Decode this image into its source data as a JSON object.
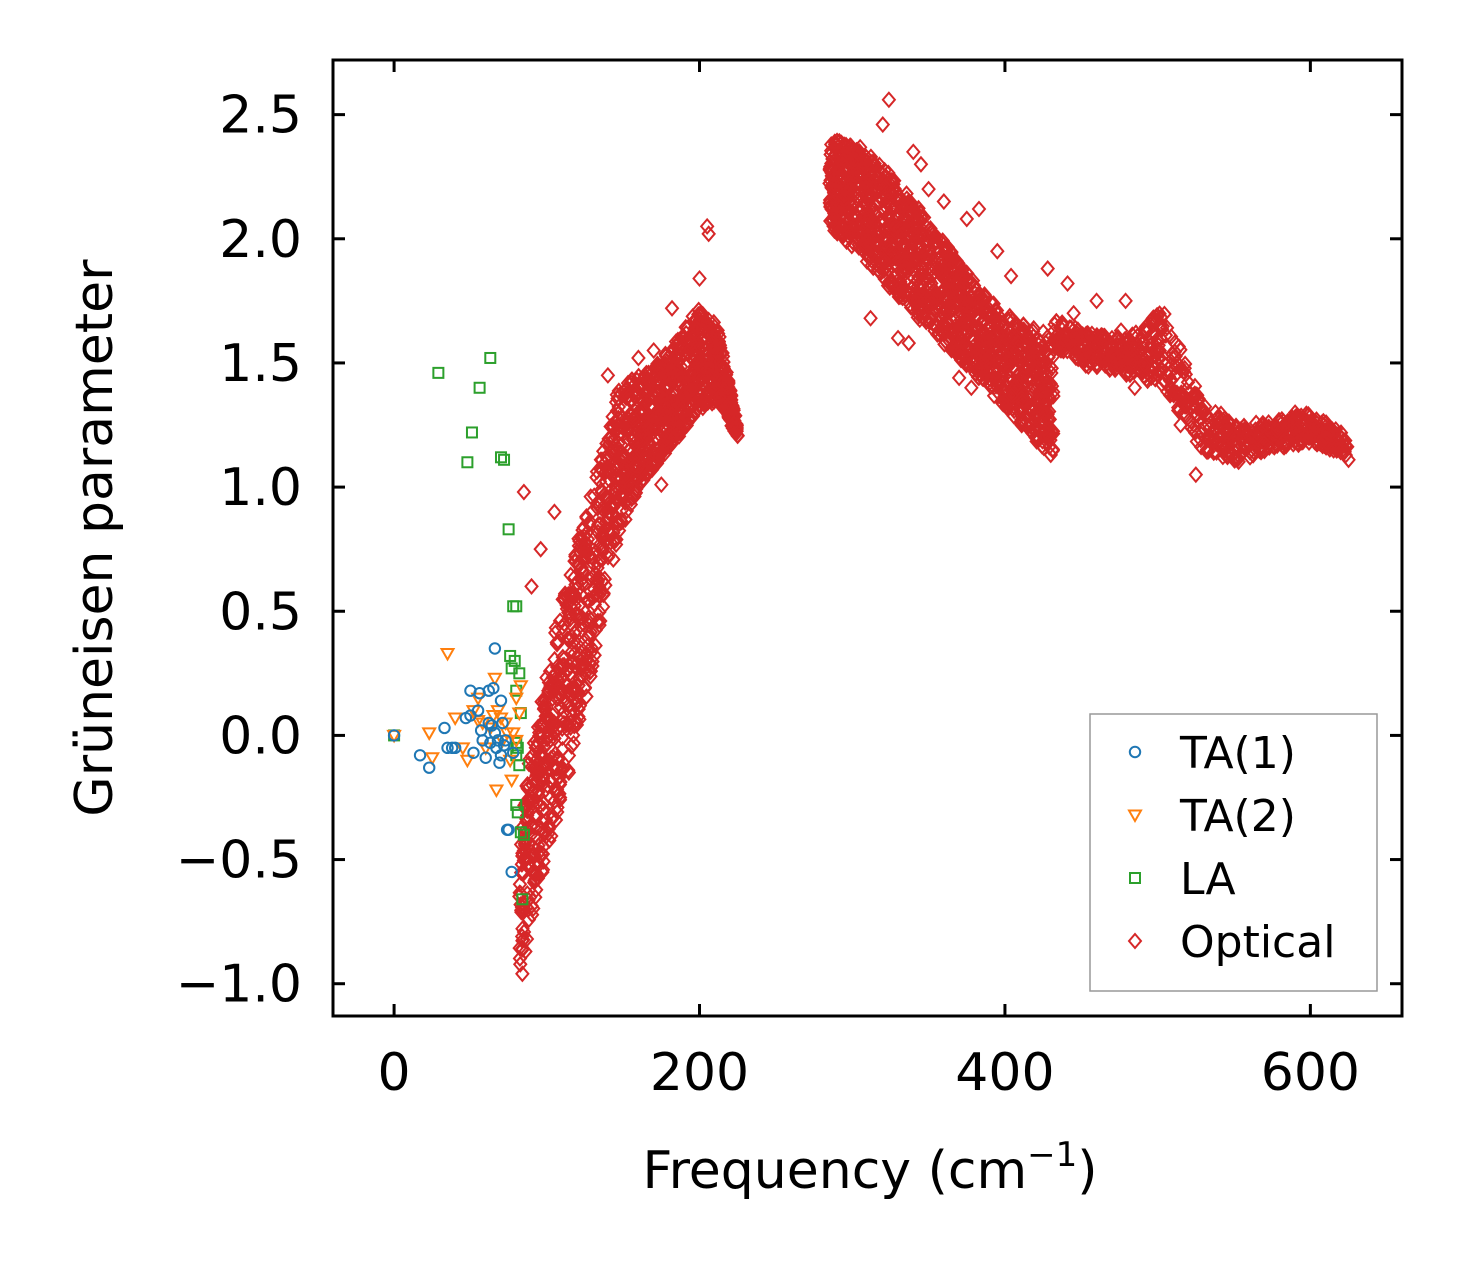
{
  "chart_data": {
    "type": "scatter",
    "title": "",
    "xlabel": "Frequency (cm",
    "xlabel_superscript": "−1",
    "xlabel_suffix": ")",
    "ylabel": "Grüneisen parameter",
    "xlim": [
      -40,
      660
    ],
    "ylim": [
      -1.13,
      2.72
    ],
    "x_ticks": [
      0,
      200,
      400,
      600
    ],
    "x_tick_labels": [
      "0",
      "200",
      "400",
      "600"
    ],
    "y_ticks": [
      -1.0,
      -0.5,
      0.0,
      0.5,
      1.0,
      1.5,
      2.0,
      2.5
    ],
    "y_tick_labels": [
      "−1.0",
      "−0.5",
      "0.0",
      "0.5",
      "1.0",
      "1.5",
      "2.0",
      "2.5"
    ],
    "grid": false,
    "legend_position": "lower-right",
    "series": [
      {
        "name": "TA(1)",
        "marker": "circle",
        "color": "#1f77b4",
        "points": [
          [
            0,
            0.0
          ],
          [
            17,
            -0.08
          ],
          [
            23,
            -0.13
          ],
          [
            33,
            0.03
          ],
          [
            35,
            -0.05
          ],
          [
            38,
            -0.05
          ],
          [
            40,
            -0.05
          ],
          [
            47,
            0.07
          ],
          [
            50,
            0.08
          ],
          [
            50,
            0.18
          ],
          [
            52,
            -0.07
          ],
          [
            55,
            0.1
          ],
          [
            56,
            0.17
          ],
          [
            57,
            0.02
          ],
          [
            58,
            -0.02
          ],
          [
            60,
            -0.09
          ],
          [
            62,
            0.18
          ],
          [
            62,
            0.05
          ],
          [
            63,
            -0.03
          ],
          [
            64,
            0.04
          ],
          [
            65,
            0.19
          ],
          [
            66,
            0.35
          ],
          [
            66,
            0.01
          ],
          [
            67,
            -0.05
          ],
          [
            68,
            -0.02
          ],
          [
            69,
            -0.11
          ],
          [
            70,
            0.14
          ],
          [
            70,
            -0.08
          ],
          [
            71,
            0.05
          ],
          [
            72,
            -0.04
          ],
          [
            73,
            -0.02
          ],
          [
            74,
            -0.38
          ],
          [
            75,
            -0.38
          ],
          [
            77,
            -0.55
          ],
          [
            78,
            -0.07
          ]
        ]
      },
      {
        "name": "TA(2)",
        "marker": "triangle-down",
        "color": "#ff7f0e",
        "points": [
          [
            0,
            0.0
          ],
          [
            23,
            0.01
          ],
          [
            25,
            -0.09
          ],
          [
            35,
            0.33
          ],
          [
            40,
            0.07
          ],
          [
            45,
            -0.05
          ],
          [
            48,
            -0.1
          ],
          [
            52,
            0.1
          ],
          [
            55,
            0.06
          ],
          [
            55,
            0.15
          ],
          [
            58,
            0.05
          ],
          [
            60,
            -0.05
          ],
          [
            63,
            0.03
          ],
          [
            65,
            0.08
          ],
          [
            66,
            0.23
          ],
          [
            67,
            -0.22
          ],
          [
            68,
            0.1
          ],
          [
            70,
            0.07
          ],
          [
            71,
            -0.02
          ],
          [
            73,
            0.05
          ],
          [
            74,
            0.01
          ],
          [
            76,
            -0.1
          ],
          [
            77,
            -0.18
          ],
          [
            78,
            0.01
          ],
          [
            80,
            0.15
          ],
          [
            80,
            -0.02
          ],
          [
            82,
            0.09
          ],
          [
            83,
            0.2
          ]
        ]
      },
      {
        "name": "LA",
        "marker": "square",
        "color": "#2ca02c",
        "points": [
          [
            0,
            0.0
          ],
          [
            29,
            1.46
          ],
          [
            48,
            1.1
          ],
          [
            51,
            1.22
          ],
          [
            56,
            1.4
          ],
          [
            63,
            1.52
          ],
          [
            70,
            1.12
          ],
          [
            72,
            1.11
          ],
          [
            75,
            0.83
          ],
          [
            76,
            0.32
          ],
          [
            77,
            0.27
          ],
          [
            78,
            0.52
          ],
          [
            79,
            0.3
          ],
          [
            80,
            0.52
          ],
          [
            80,
            0.18
          ],
          [
            80,
            -0.03
          ],
          [
            80,
            -0.08
          ],
          [
            80,
            -0.28
          ],
          [
            81,
            -0.05
          ],
          [
            81,
            -0.31
          ],
          [
            82,
            0.25
          ],
          [
            82,
            -0.12
          ],
          [
            83,
            0.09
          ],
          [
            83,
            -0.39
          ],
          [
            84,
            -0.66
          ],
          [
            85,
            -0.4
          ]
        ]
      },
      {
        "name": "Optical",
        "marker": "diamond",
        "color": "#d62728",
        "dense_bands": [
          {
            "label": "optical-band-1",
            "x_range": [
              82,
              225
            ],
            "y_lower": [
              -0.95,
              -0.6,
              -0.3,
              0.0,
              0.4,
              0.8,
              1.0,
              1.1,
              1.2,
              1.3,
              1.35,
              1.2
            ],
            "y_upper": [
              -0.3,
              0.1,
              0.5,
              0.8,
              1.1,
              1.4,
              1.45,
              1.5,
              1.6,
              1.72,
              1.65,
              1.24
            ],
            "count": 1400
          },
          {
            "label": "optical-band-2",
            "x_range": [
              285,
              432
            ],
            "y_lower": [
              2.05,
              1.95,
              1.82,
              1.7,
              1.58,
              1.48,
              1.35,
              1.22,
              1.12
            ],
            "y_upper": [
              2.4,
              2.38,
              2.28,
              2.15,
              2.0,
              1.85,
              1.72,
              1.65,
              1.62
            ],
            "count": 1400
          },
          {
            "label": "optical-band-3",
            "x_range": [
              432,
              625
            ],
            "y_lower": [
              1.55,
              1.48,
              1.45,
              1.4,
              1.15,
              1.1,
              1.15,
              1.18,
              1.12
            ],
            "y_upper": [
              1.68,
              1.62,
              1.6,
              1.72,
              1.35,
              1.25,
              1.27,
              1.3,
              1.2
            ],
            "count": 700
          }
        ],
        "points": [
          [
            85,
            0.98
          ],
          [
            90,
            0.6
          ],
          [
            96,
            0.75
          ],
          [
            105,
            0.9
          ],
          [
            150,
            0.95
          ],
          [
            155,
            0.93
          ],
          [
            175,
            1.01
          ],
          [
            205,
            2.05
          ],
          [
            206,
            2.02
          ],
          [
            200,
            1.84
          ],
          [
            190,
            1.6
          ],
          [
            170,
            1.55
          ],
          [
            160,
            1.52
          ],
          [
            140,
            1.45
          ],
          [
            182,
            1.72
          ],
          [
            324,
            2.56
          ],
          [
            320,
            2.46
          ],
          [
            340,
            2.35
          ],
          [
            345,
            2.3
          ],
          [
            350,
            2.2
          ],
          [
            360,
            2.15
          ],
          [
            375,
            2.08
          ],
          [
            383,
            2.12
          ],
          [
            395,
            1.95
          ],
          [
            404,
            1.85
          ],
          [
            428,
            1.88
          ],
          [
            441,
            1.82
          ],
          [
            460,
            1.75
          ],
          [
            479,
            1.75
          ],
          [
            445,
            1.7
          ],
          [
            476,
            1.63
          ],
          [
            500,
            1.55
          ],
          [
            330,
            1.6
          ],
          [
            337,
            1.58
          ],
          [
            312,
            1.68
          ],
          [
            370,
            1.44
          ],
          [
            378,
            1.4
          ],
          [
            410,
            1.3
          ],
          [
            420,
            1.2
          ],
          [
            430,
            1.13
          ],
          [
            445,
            1.6
          ],
          [
            470,
            1.5
          ],
          [
            485,
            1.4
          ],
          [
            500,
            1.45
          ],
          [
            515,
            1.25
          ],
          [
            525,
            1.05
          ],
          [
            535,
            1.18
          ],
          [
            590,
            1.3
          ],
          [
            625,
            1.11
          ],
          [
            87,
            -0.82
          ],
          [
            84,
            -0.96
          ],
          [
            88,
            -0.7
          ],
          [
            86,
            -0.87
          ]
        ]
      }
    ]
  }
}
